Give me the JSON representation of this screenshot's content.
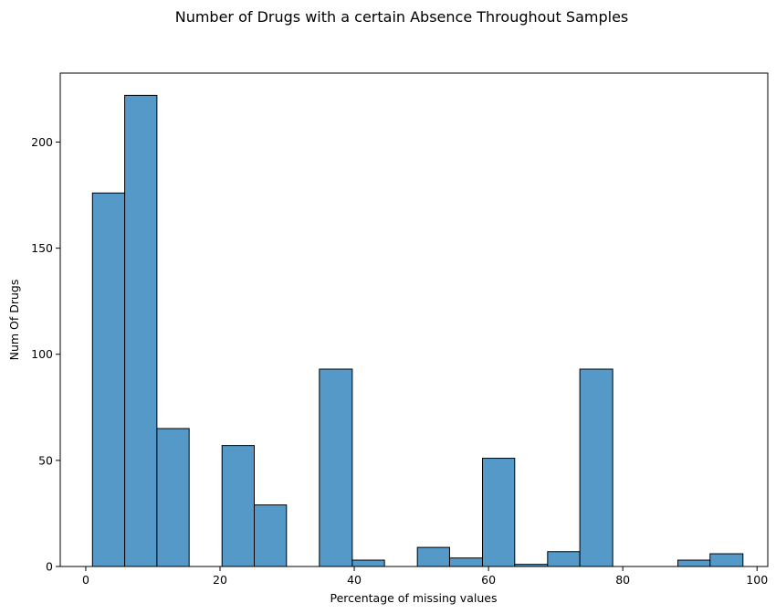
{
  "chart_data": {
    "type": "bar",
    "title": "Number of Drugs with a certain Absence Throughout Samples",
    "xlabel": "Percentage of missing values",
    "ylabel": "Num Of Drugs",
    "xlim": [
      -3.8,
      101.6
    ],
    "ylim": [
      0,
      232.5
    ],
    "xticks": [
      0,
      20,
      40,
      60,
      80,
      100
    ],
    "yticks": [
      0,
      50,
      100,
      150,
      200
    ],
    "bar_color": "#5499c7",
    "edge_color": "#000000",
    "grid": false,
    "bins": [
      {
        "x0": 1.0,
        "x1": 5.8,
        "count": 176
      },
      {
        "x0": 5.8,
        "x1": 10.6,
        "count": 222
      },
      {
        "x0": 10.6,
        "x1": 15.4,
        "count": 65
      },
      {
        "x0": 15.4,
        "x1": 20.3,
        "count": 0
      },
      {
        "x0": 20.3,
        "x1": 25.1,
        "count": 57
      },
      {
        "x0": 25.1,
        "x1": 29.9,
        "count": 29
      },
      {
        "x0": 29.9,
        "x1": 34.8,
        "count": 0
      },
      {
        "x0": 34.8,
        "x1": 39.7,
        "count": 93
      },
      {
        "x0": 39.7,
        "x1": 44.5,
        "count": 3
      },
      {
        "x0": 44.5,
        "x1": 49.4,
        "count": 0
      },
      {
        "x0": 49.4,
        "x1": 54.2,
        "count": 9
      },
      {
        "x0": 54.2,
        "x1": 59.1,
        "count": 4
      },
      {
        "x0": 59.1,
        "x1": 63.9,
        "count": 51
      },
      {
        "x0": 63.9,
        "x1": 68.8,
        "count": 1
      },
      {
        "x0": 68.8,
        "x1": 73.6,
        "count": 7
      },
      {
        "x0": 73.6,
        "x1": 78.5,
        "count": 93
      },
      {
        "x0": 78.5,
        "x1": 83.3,
        "count": 0
      },
      {
        "x0": 83.3,
        "x1": 88.2,
        "count": 0
      },
      {
        "x0": 88.2,
        "x1": 93.0,
        "count": 3
      },
      {
        "x0": 93.0,
        "x1": 97.9,
        "count": 6
      }
    ]
  }
}
